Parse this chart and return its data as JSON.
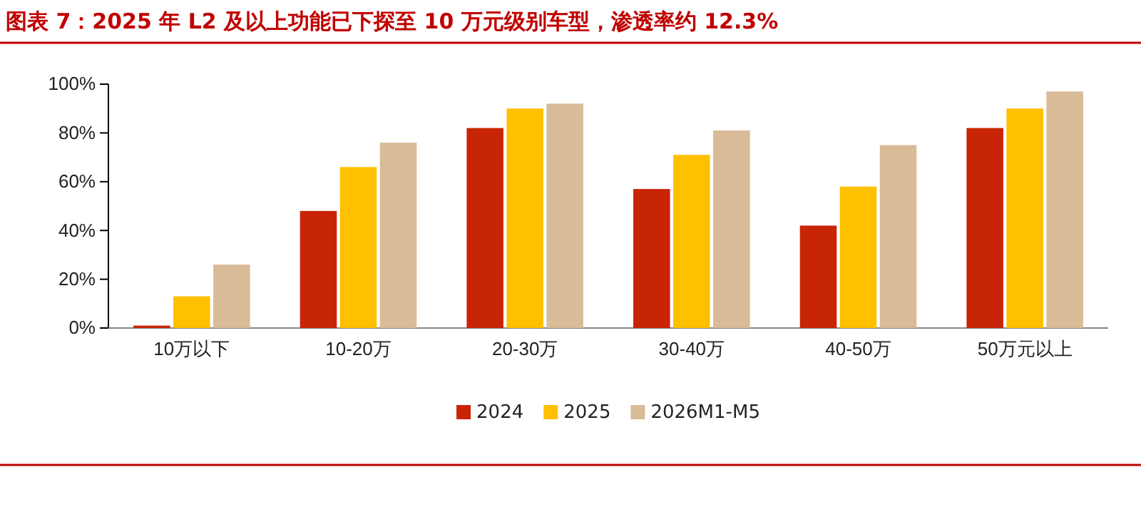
{
  "chart_data": {
    "type": "bar",
    "title": "图表 7：2025 年 L2 及以上功能已下探至 10 万元级别车型，渗透率约 12.3%",
    "categories": [
      "10万以下",
      "10-20万",
      "20-30万",
      "30-40万",
      "40-50万",
      "50万元以上"
    ],
    "series": [
      {
        "name": "2024",
        "color": "#c82506",
        "values": [
          1,
          48,
          82,
          57,
          42,
          82
        ]
      },
      {
        "name": "2025",
        "color": "#ffc000",
        "values": [
          13,
          66,
          90,
          71,
          58,
          90
        ]
      },
      {
        "name": "2026M1-M5",
        "color": "#d9bb98",
        "values": [
          26,
          76,
          92,
          81,
          75,
          97
        ]
      }
    ],
    "ylim": [
      0,
      100
    ],
    "yticks": [
      {
        "value": 0,
        "label": "0%"
      },
      {
        "value": 20,
        "label": "20%"
      },
      {
        "value": 40,
        "label": "40%"
      },
      {
        "value": 60,
        "label": "60%"
      },
      {
        "value": 80,
        "label": "80%"
      },
      {
        "value": 100,
        "label": "100%"
      }
    ],
    "legend": "bottom"
  }
}
